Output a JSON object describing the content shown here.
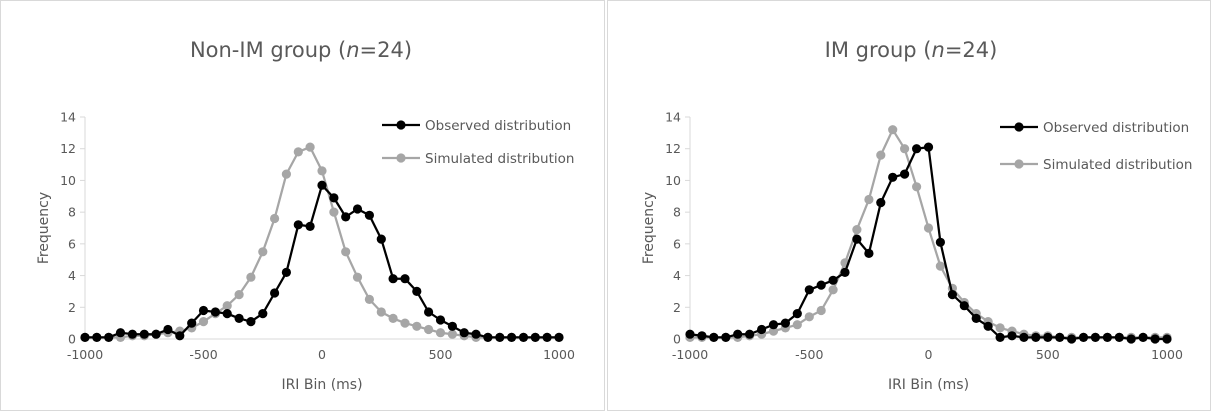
{
  "chart_data": [
    {
      "type": "line",
      "title": "Non-IM group (n=24)",
      "title_parts": {
        "prefix": "Non-IM group (",
        "italic": "n",
        "suffix": "=24)"
      },
      "xlabel": "IRI Bin (ms)",
      "ylabel": "Frequency",
      "xlim": [
        -1000,
        1000
      ],
      "ylim": [
        0,
        14
      ],
      "x_ticks": [
        "-1000",
        "-500",
        "0",
        "500",
        "1000"
      ],
      "y_ticks": [
        "0",
        "2",
        "4",
        "6",
        "8",
        "10",
        "12",
        "14"
      ],
      "grid": false,
      "legend_position": "top-right",
      "x": [
        -1000,
        -950,
        -900,
        -850,
        -800,
        -750,
        -700,
        -650,
        -600,
        -550,
        -500,
        -450,
        -400,
        -350,
        -300,
        -250,
        -200,
        -150,
        -100,
        -50,
        0,
        50,
        100,
        150,
        200,
        250,
        300,
        350,
        400,
        450,
        500,
        550,
        600,
        650,
        700,
        750,
        800,
        850,
        900,
        950,
        1000
      ],
      "series": [
        {
          "name": "Observed distribution",
          "color": "#000000",
          "values": [
            0.1,
            0.1,
            0.1,
            0.4,
            0.3,
            0.3,
            0.3,
            0.6,
            0.2,
            1.0,
            1.8,
            1.7,
            1.6,
            1.3,
            1.1,
            1.6,
            2.9,
            4.2,
            7.2,
            7.1,
            9.7,
            8.9,
            7.7,
            8.2,
            7.8,
            6.3,
            3.8,
            3.8,
            3.0,
            1.7,
            1.2,
            0.8,
            0.4,
            0.3,
            0.1,
            0.1,
            0.1,
            0.1,
            0.1,
            0.1,
            0.1
          ]
        },
        {
          "name": "Simulated distribution",
          "color": "#a6a6a6",
          "values": [
            0.1,
            0.1,
            0.1,
            0.1,
            0.2,
            0.2,
            0.3,
            0.4,
            0.5,
            0.7,
            1.1,
            1.6,
            2.1,
            2.8,
            3.9,
            5.5,
            7.6,
            10.4,
            11.8,
            12.1,
            10.6,
            8.0,
            5.5,
            3.9,
            2.5,
            1.7,
            1.3,
            1.0,
            0.8,
            0.6,
            0.4,
            0.3,
            0.2,
            0.1,
            0.1,
            0.1,
            0.1,
            0.1,
            0.1,
            0.1,
            0.1
          ]
        }
      ]
    },
    {
      "type": "line",
      "title": "IM group (n=24)",
      "title_parts": {
        "prefix": "IM group (",
        "italic": "n",
        "suffix": "=24)"
      },
      "xlabel": "IRI Bin (ms)",
      "ylabel": "Frequency",
      "xlim": [
        -1000,
        1000
      ],
      "ylim": [
        0,
        14
      ],
      "x_ticks": [
        "-1000",
        "-500",
        "0",
        "500",
        "1000"
      ],
      "y_ticks": [
        "0",
        "2",
        "4",
        "6",
        "8",
        "10",
        "12",
        "14"
      ],
      "grid": false,
      "legend_position": "top-right",
      "x": [
        -1000,
        -950,
        -900,
        -850,
        -800,
        -750,
        -700,
        -650,
        -600,
        -550,
        -500,
        -450,
        -400,
        -350,
        -300,
        -250,
        -200,
        -150,
        -100,
        -50,
        0,
        50,
        100,
        150,
        200,
        250,
        300,
        350,
        400,
        450,
        500,
        550,
        600,
        650,
        700,
        750,
        800,
        850,
        900,
        950,
        1000
      ],
      "series": [
        {
          "name": "Observed distribution",
          "color": "#000000",
          "values": [
            0.3,
            0.2,
            0.1,
            0.1,
            0.3,
            0.3,
            0.6,
            0.9,
            1.0,
            1.6,
            3.1,
            3.4,
            3.7,
            4.2,
            6.3,
            5.4,
            8.6,
            10.2,
            10.4,
            12.0,
            12.1,
            6.1,
            2.8,
            2.1,
            1.3,
            0.8,
            0.1,
            0.2,
            0.1,
            0.1,
            0.1,
            0.1,
            0.0,
            0.1,
            0.1,
            0.1,
            0.1,
            0.0,
            0.1,
            0.0,
            0.0
          ]
        },
        {
          "name": "Simulated distribution",
          "color": "#a6a6a6",
          "values": [
            0.1,
            0.1,
            0.1,
            0.1,
            0.1,
            0.2,
            0.3,
            0.5,
            0.7,
            0.9,
            1.4,
            1.8,
            3.1,
            4.8,
            6.9,
            8.8,
            11.6,
            13.2,
            12.0,
            9.6,
            7.0,
            4.6,
            3.2,
            2.3,
            1.6,
            1.1,
            0.7,
            0.5,
            0.3,
            0.2,
            0.2,
            0.1,
            0.1,
            0.1,
            0.1,
            0.1,
            0.1,
            0.1,
            0.1,
            0.1,
            0.1
          ]
        }
      ]
    }
  ]
}
